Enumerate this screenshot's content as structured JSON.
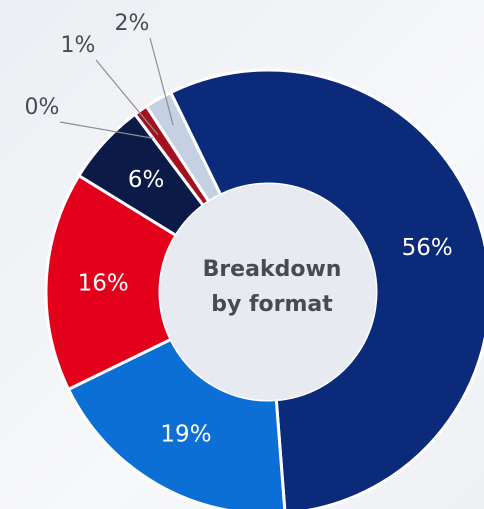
{
  "chart_data": {
    "type": "donut",
    "center_text": [
      "Breakdown",
      "by format"
    ],
    "values": [
      56,
      19,
      16,
      6,
      0,
      1,
      2
    ],
    "value_labels": [
      "56%",
      "19%",
      "16%",
      "6%",
      "0%",
      "1%",
      "2%"
    ],
    "colors": [
      "#0b2a7a",
      "#0b6fd6",
      "#e2001a",
      "#0b1a47",
      "#f4f4f6",
      "#a5101f",
      "#c5d1e3"
    ]
  }
}
